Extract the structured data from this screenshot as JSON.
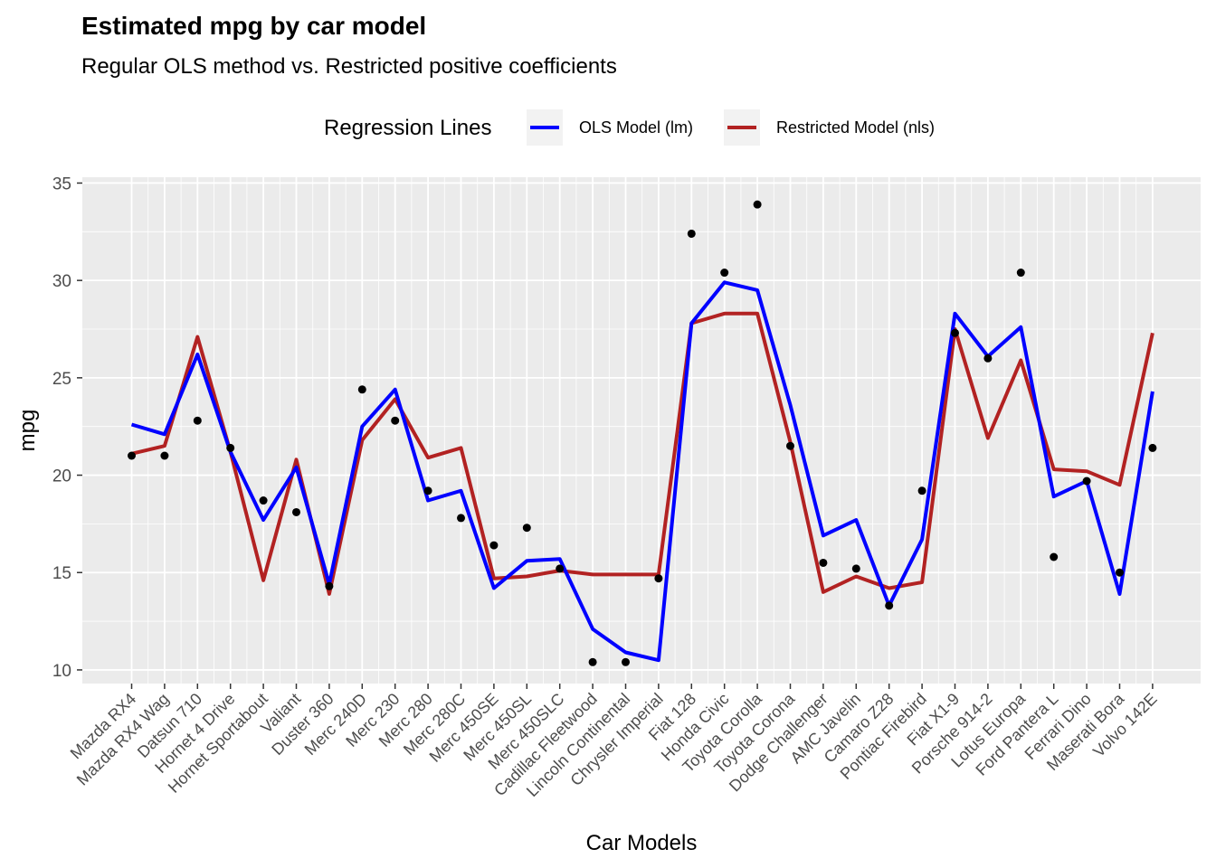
{
  "chart_data": {
    "type": "line",
    "title": "Estimated mpg by car model",
    "subtitle": "Regular OLS method vs. Restricted positive coefficients",
    "xlabel": "Car Models",
    "ylabel": "mpg",
    "ylim": [
      9.3,
      35.3
    ],
    "yticks": [
      10,
      15,
      20,
      25,
      30,
      35
    ],
    "grid": true,
    "legend_position": "top",
    "legend_title": "Regression Lines",
    "categories": [
      "Mazda RX4",
      "Mazda RX4 Wag",
      "Datsun 710",
      "Hornet 4 Drive",
      "Hornet Sportabout",
      "Valiant",
      "Duster 360",
      "Merc 240D",
      "Merc 230",
      "Merc 280",
      "Merc 280C",
      "Merc 450SE",
      "Merc 450SL",
      "Merc 450SLC",
      "Cadillac Fleetwood",
      "Lincoln Continental",
      "Chrysler Imperial",
      "Fiat 128",
      "Honda Civic",
      "Toyota Corolla",
      "Toyota Corona",
      "Dodge Challenger",
      "AMC Javelin",
      "Camaro Z28",
      "Pontiac Firebird",
      "Fiat X1-9",
      "Porsche 914-2",
      "Lotus Europa",
      "Ford Pantera L",
      "Ferrari Dino",
      "Maserati Bora",
      "Volvo 142E"
    ],
    "points": {
      "name": "mpg",
      "color": "#000000",
      "values": [
        21.0,
        21.0,
        22.8,
        21.4,
        18.7,
        18.1,
        14.3,
        24.4,
        22.8,
        19.2,
        17.8,
        16.4,
        17.3,
        15.2,
        10.4,
        10.4,
        14.7,
        32.4,
        30.4,
        33.9,
        21.5,
        15.5,
        15.2,
        13.3,
        19.2,
        27.3,
        26.0,
        30.4,
        15.8,
        19.7,
        15.0,
        21.4
      ]
    },
    "series": [
      {
        "name": "OLS Model (lm)",
        "color": "#0000FF",
        "values": [
          22.6,
          22.1,
          26.2,
          21.2,
          17.7,
          20.4,
          14.4,
          22.5,
          24.4,
          18.7,
          19.2,
          14.2,
          15.6,
          15.7,
          12.1,
          10.9,
          10.5,
          27.8,
          29.9,
          29.5,
          23.6,
          16.9,
          17.7,
          13.3,
          16.7,
          28.3,
          26.1,
          27.6,
          18.9,
          19.7,
          13.9,
          24.3
        ]
      },
      {
        "name": "Restricted Model (nls)",
        "color": "#B22222",
        "values": [
          21.1,
          21.5,
          27.1,
          21.2,
          14.6,
          20.8,
          13.9,
          21.8,
          23.9,
          20.9,
          21.4,
          14.7,
          14.8,
          15.1,
          14.9,
          14.9,
          14.9,
          27.8,
          28.3,
          28.3,
          21.7,
          14.0,
          14.8,
          14.2,
          14.5,
          27.5,
          21.9,
          25.9,
          20.3,
          20.2,
          19.5,
          27.3
        ]
      }
    ]
  }
}
